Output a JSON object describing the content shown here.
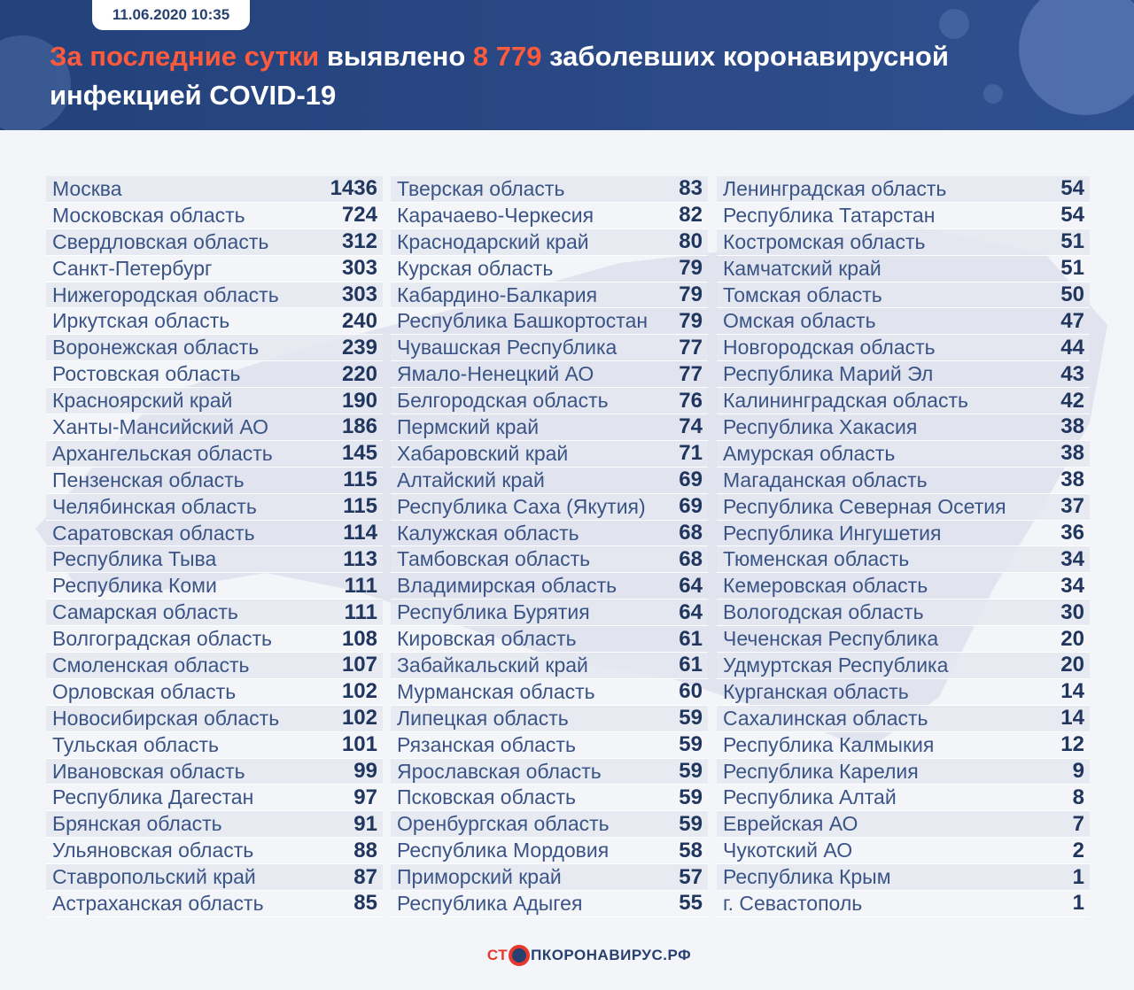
{
  "header": {
    "date": "11.06.2020 10:35",
    "headline_accent": "За последние сутки",
    "headline_mid": " выявлено ",
    "headline_number": "8 779",
    "headline_end": " заболевших коронавирусной инфекцией COVID-19"
  },
  "colors": {
    "header_bg": "#2b4a86",
    "accent": "#ff5a3c",
    "value_text": "#20365f",
    "name_text": "#3a5486"
  },
  "columns": [
    [
      {
        "name": "Москва",
        "value": "1436"
      },
      {
        "name": "Московская область",
        "value": "724"
      },
      {
        "name": "Свердловская область",
        "value": "312"
      },
      {
        "name": "Санкт-Петербург",
        "value": "303"
      },
      {
        "name": "Нижегородская область",
        "value": "303"
      },
      {
        "name": "Иркутская область",
        "value": "240"
      },
      {
        "name": "Воронежская область",
        "value": "239"
      },
      {
        "name": "Ростовская область",
        "value": "220"
      },
      {
        "name": "Красноярский край",
        "value": "190"
      },
      {
        "name": "Ханты-Мансийский АО",
        "value": "186"
      },
      {
        "name": "Архангельская область",
        "value": "145"
      },
      {
        "name": "Пензенская область",
        "value": "115"
      },
      {
        "name": "Челябинская область",
        "value": "115"
      },
      {
        "name": "Саратовская область",
        "value": "114"
      },
      {
        "name": "Республика Тыва",
        "value": "113"
      },
      {
        "name": "Республика Коми",
        "value": "111"
      },
      {
        "name": "Самарская область",
        "value": "111"
      },
      {
        "name": "Волгоградская область",
        "value": "108"
      },
      {
        "name": "Смоленская область",
        "value": "107"
      },
      {
        "name": "Орловская область",
        "value": "102"
      },
      {
        "name": "Новосибирская область",
        "value": "102"
      },
      {
        "name": "Тульская область",
        "value": "101"
      },
      {
        "name": "Ивановская область",
        "value": "99"
      },
      {
        "name": "Республика Дагестан",
        "value": "97"
      },
      {
        "name": "Брянская область",
        "value": "91"
      },
      {
        "name": "Ульяновская область",
        "value": "88"
      },
      {
        "name": "Ставропольский край",
        "value": "87"
      },
      {
        "name": "Астраханская область",
        "value": "85"
      }
    ],
    [
      {
        "name": "Тверская область",
        "value": "83"
      },
      {
        "name": "Карачаево-Черкесия",
        "value": "82"
      },
      {
        "name": "Краснодарский край",
        "value": "80"
      },
      {
        "name": "Курская область",
        "value": "79"
      },
      {
        "name": "Кабардино-Балкария",
        "value": "79"
      },
      {
        "name": "Республика Башкортостан",
        "value": "79"
      },
      {
        "name": "Чувашская Республика",
        "value": "77"
      },
      {
        "name": "Ямало-Ненецкий АО",
        "value": "77"
      },
      {
        "name": "Белгородская область",
        "value": "76"
      },
      {
        "name": "Пермский край",
        "value": "74"
      },
      {
        "name": "Хабаровский край",
        "value": "71"
      },
      {
        "name": "Алтайский край",
        "value": "69"
      },
      {
        "name": "Республика Саха (Якутия)",
        "value": "69"
      },
      {
        "name": "Калужская область",
        "value": "68"
      },
      {
        "name": "Тамбовская область",
        "value": "68"
      },
      {
        "name": "Владимирская область",
        "value": "64"
      },
      {
        "name": "Республика Бурятия",
        "value": "64"
      },
      {
        "name": "Кировская область",
        "value": "61"
      },
      {
        "name": "Забайкальский край",
        "value": "61"
      },
      {
        "name": "Мурманская область",
        "value": "60"
      },
      {
        "name": "Липецкая область",
        "value": "59"
      },
      {
        "name": "Рязанская область",
        "value": "59"
      },
      {
        "name": "Ярославская область",
        "value": "59"
      },
      {
        "name": "Псковская область",
        "value": "59"
      },
      {
        "name": "Оренбургская область",
        "value": "59"
      },
      {
        "name": "Республика Мордовия",
        "value": "58"
      },
      {
        "name": "Приморский край",
        "value": "57"
      },
      {
        "name": "Республика Адыгея",
        "value": "55"
      }
    ],
    [
      {
        "name": "Ленинградская область",
        "value": "54"
      },
      {
        "name": "Республика Татарстан",
        "value": "54"
      },
      {
        "name": "Костромская область",
        "value": "51"
      },
      {
        "name": "Камчатский край",
        "value": "51"
      },
      {
        "name": "Томская область",
        "value": "50"
      },
      {
        "name": "Омская область",
        "value": "47"
      },
      {
        "name": "Новгородская область",
        "value": "44"
      },
      {
        "name": "Республика Марий Эл",
        "value": "43"
      },
      {
        "name": "Калининградская область",
        "value": "42"
      },
      {
        "name": "Республика Хакасия",
        "value": "38"
      },
      {
        "name": "Амурская область",
        "value": "38"
      },
      {
        "name": "Магаданская область",
        "value": "38"
      },
      {
        "name": "Республика Северная Осетия",
        "value": "37"
      },
      {
        "name": "Республика Ингушетия",
        "value": "36"
      },
      {
        "name": "Тюменская область",
        "value": "34"
      },
      {
        "name": "Кемеровская область",
        "value": "34"
      },
      {
        "name": "Вологодская область",
        "value": "30"
      },
      {
        "name": "Чеченская Республика",
        "value": "20"
      },
      {
        "name": "Удмуртская Республика",
        "value": "20"
      },
      {
        "name": "Курганская область",
        "value": "14"
      },
      {
        "name": "Сахалинская область",
        "value": "14"
      },
      {
        "name": "Республика Калмыкия",
        "value": "12"
      },
      {
        "name": "Республика Карелия",
        "value": "9"
      },
      {
        "name": "Республика Алтай",
        "value": "8"
      },
      {
        "name": "Еврейская АО",
        "value": "7"
      },
      {
        "name": "Чукотский АО",
        "value": "2"
      },
      {
        "name": "Республика Крым",
        "value": "1"
      },
      {
        "name": "г. Севастополь",
        "value": "1"
      }
    ]
  ],
  "footer": {
    "logo_left": "СТ",
    "logo_right": "ПКОРОНАВИРУС.РФ"
  },
  "icons": {
    "header_decor": "virus-icon",
    "logo_mark": "virus-icon"
  }
}
